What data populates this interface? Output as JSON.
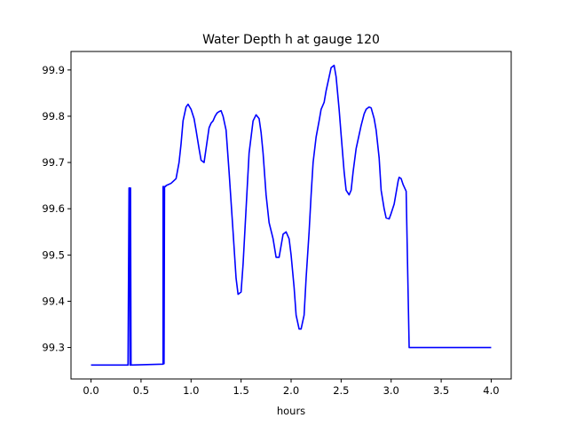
{
  "chart_data": {
    "type": "line",
    "title": "Water Depth h at gauge 120",
    "xlabel": "hours",
    "ylabel": "",
    "xlim": [
      -0.2,
      4.2
    ],
    "ylim": [
      99.232,
      99.94
    ],
    "xticks": [
      0.0,
      0.5,
      1.0,
      1.5,
      2.0,
      2.5,
      3.0,
      3.5,
      4.0
    ],
    "xtick_labels": [
      "0.0",
      "0.5",
      "1.0",
      "1.5",
      "2.0",
      "2.5",
      "3.0",
      "3.5",
      "4.0"
    ],
    "yticks": [
      99.3,
      99.4,
      99.5,
      99.6,
      99.7,
      99.8,
      99.9
    ],
    "ytick_labels": [
      "99.3",
      "99.4",
      "99.5",
      "99.6",
      "99.7",
      "99.8",
      "99.9"
    ],
    "grid": false,
    "series": [
      {
        "color": "#0000ff",
        "x": [
          0.0,
          0.37,
          0.38,
          0.385,
          0.39,
          0.395,
          0.4,
          0.72,
          0.72,
          0.725,
          0.73,
          0.735,
          0.74,
          0.745,
          0.75,
          0.8,
          0.85,
          0.88,
          0.9,
          0.92,
          0.95,
          0.97,
          1.0,
          1.03,
          1.05,
          1.08,
          1.1,
          1.13,
          1.15,
          1.18,
          1.2,
          1.22,
          1.24,
          1.26,
          1.28,
          1.3,
          1.32,
          1.35,
          1.38,
          1.42,
          1.45,
          1.47,
          1.5,
          1.52,
          1.55,
          1.58,
          1.62,
          1.65,
          1.68,
          1.7,
          1.72,
          1.75,
          1.78,
          1.82,
          1.85,
          1.88,
          1.9,
          1.92,
          1.95,
          1.98,
          2.0,
          2.03,
          2.05,
          2.08,
          2.1,
          2.13,
          2.15,
          2.18,
          2.2,
          2.22,
          2.25,
          2.28,
          2.3,
          2.33,
          2.35,
          2.38,
          2.4,
          2.43,
          2.45,
          2.48,
          2.5,
          2.53,
          2.55,
          2.58,
          2.6,
          2.62,
          2.65,
          2.68,
          2.7,
          2.73,
          2.75,
          2.78,
          2.8,
          2.83,
          2.85,
          2.88,
          2.9,
          2.93,
          2.95,
          2.98,
          3.0,
          3.03,
          3.05,
          3.07,
          3.08,
          3.1,
          3.12,
          3.15,
          3.18,
          3.2,
          3.22,
          3.25,
          3.28,
          3.3,
          3.32,
          3.35,
          3.38,
          3.4,
          3.43,
          3.45,
          3.48,
          3.5,
          3.53,
          3.55,
          3.58,
          3.6,
          3.63,
          3.65,
          3.68,
          3.7,
          3.72,
          3.75,
          3.78,
          3.8,
          3.82,
          3.85,
          3.88,
          3.9,
          3.92,
          3.95,
          3.97,
          4.0
        ],
        "values": [
          99.262,
          99.262,
          99.645,
          99.645,
          99.262,
          99.645,
          99.262,
          99.264,
          99.648,
          99.648,
          99.265,
          99.648,
          99.648,
          99.648,
          99.65,
          99.655,
          99.665,
          99.7,
          99.74,
          99.79,
          99.82,
          99.826,
          99.815,
          99.795,
          99.77,
          99.73,
          99.705,
          99.7,
          99.73,
          99.775,
          99.785,
          99.79,
          99.8,
          99.807,
          99.81,
          99.812,
          99.8,
          99.77,
          99.68,
          99.55,
          99.45,
          99.415,
          99.42,
          99.48,
          99.6,
          99.72,
          99.79,
          99.803,
          99.795,
          99.765,
          99.72,
          99.63,
          99.57,
          99.535,
          99.495,
          99.495,
          99.52,
          99.545,
          99.55,
          99.535,
          99.5,
          99.43,
          99.37,
          99.34,
          99.34,
          99.37,
          99.45,
          99.55,
          99.63,
          99.7,
          99.755,
          99.79,
          99.815,
          99.83,
          99.855,
          99.885,
          99.905,
          99.91,
          99.885,
          99.815,
          99.76,
          99.68,
          99.64,
          99.63,
          99.64,
          99.68,
          99.73,
          99.76,
          99.78,
          99.805,
          99.815,
          99.82,
          99.818,
          99.795,
          99.77,
          99.71,
          99.64,
          99.6,
          99.58,
          99.578,
          99.59,
          99.61,
          99.635,
          99.66,
          99.668,
          99.665,
          99.652,
          99.638,
          99.3,
          99.3,
          99.3,
          99.3,
          99.3,
          99.3,
          99.3,
          99.3,
          99.3,
          99.3,
          99.3,
          99.3,
          99.3,
          99.3,
          99.3,
          99.3,
          99.3,
          99.3,
          99.3,
          99.3,
          99.3,
          99.3,
          99.3,
          99.3,
          99.3,
          99.3,
          99.3,
          99.3,
          99.3,
          99.3,
          99.3,
          99.3,
          99.3,
          99.3
        ]
      }
    ]
  }
}
